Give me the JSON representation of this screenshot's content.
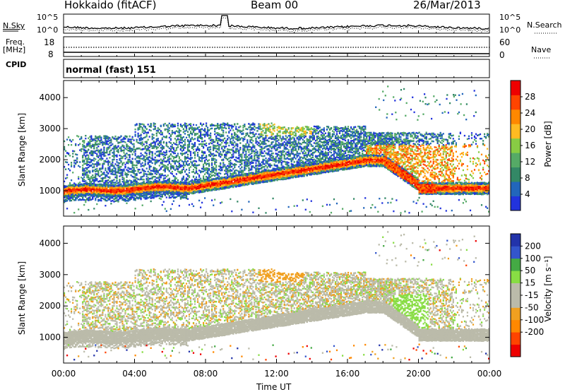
{
  "header": {
    "station": "Hokkaido (fitACF)",
    "beam": "Beam 00",
    "date": "26/Mar/2013"
  },
  "ancillary": {
    "nsky_label": "N.Sky",
    "nsky_ticks": [
      "10^5",
      "10^0"
    ],
    "nsearch_label": "N.Search",
    "freq_label_1": "Freq.",
    "freq_label_2": "[MHz]",
    "freq_ticks": [
      "18",
      "8"
    ],
    "nave_label": "Nave",
    "nave_ticks": [
      "60",
      "0"
    ],
    "cpid_label": "CPID",
    "cpid_value": "normal (fast) 151"
  },
  "colors": {
    "power_scale": [
      "#2233dd",
      "#2266bb",
      "#338866",
      "#55aa66",
      "#88cc44",
      "#ffbb22",
      "#ff8800",
      "#ff4400",
      "#ee0000"
    ],
    "velocity_scale": [
      "#ee0000",
      "#ff4400",
      "#ff8800",
      "#f0a020",
      "#bbbbaa",
      "#bbbbaa",
      "#88dd44",
      "#44aa44",
      "#3355cc",
      "#2233aa"
    ],
    "ground_scatter": "#bbbbaa"
  },
  "chart_data": [
    {
      "type": "heatmap",
      "name": "power",
      "ylabel": "Slant Range [km]",
      "yticks": [
        1000,
        2000,
        3000,
        4000
      ],
      "ylim": [
        180,
        4550
      ],
      "xticks": [
        "00:00",
        "04:00",
        "08:00",
        "12:00",
        "16:00",
        "20:00",
        "00:00"
      ],
      "xlim": [
        0,
        24
      ],
      "colorbar_label": "Power [dB]",
      "colorbar_ticks": [
        "28",
        "24",
        "20",
        "16",
        "12",
        "8",
        "4"
      ],
      "colorbar_range": [
        0,
        32
      ]
    },
    {
      "type": "heatmap",
      "name": "velocity",
      "ylabel": "Slant Range [km]",
      "yticks": [
        1000,
        2000,
        3000,
        4000
      ],
      "ylim": [
        180,
        4550
      ],
      "xticks": [
        "00:00",
        "04:00",
        "08:00",
        "12:00",
        "16:00",
        "20:00",
        "00:00"
      ],
      "xlim": [
        0,
        24
      ],
      "xlabel": "Time UT",
      "colorbar_label": "Velocity [m s⁻¹]",
      "colorbar_ticks": [
        "200",
        "100",
        "50",
        "15",
        "-15",
        "-50",
        "-100",
        "-200"
      ]
    }
  ]
}
